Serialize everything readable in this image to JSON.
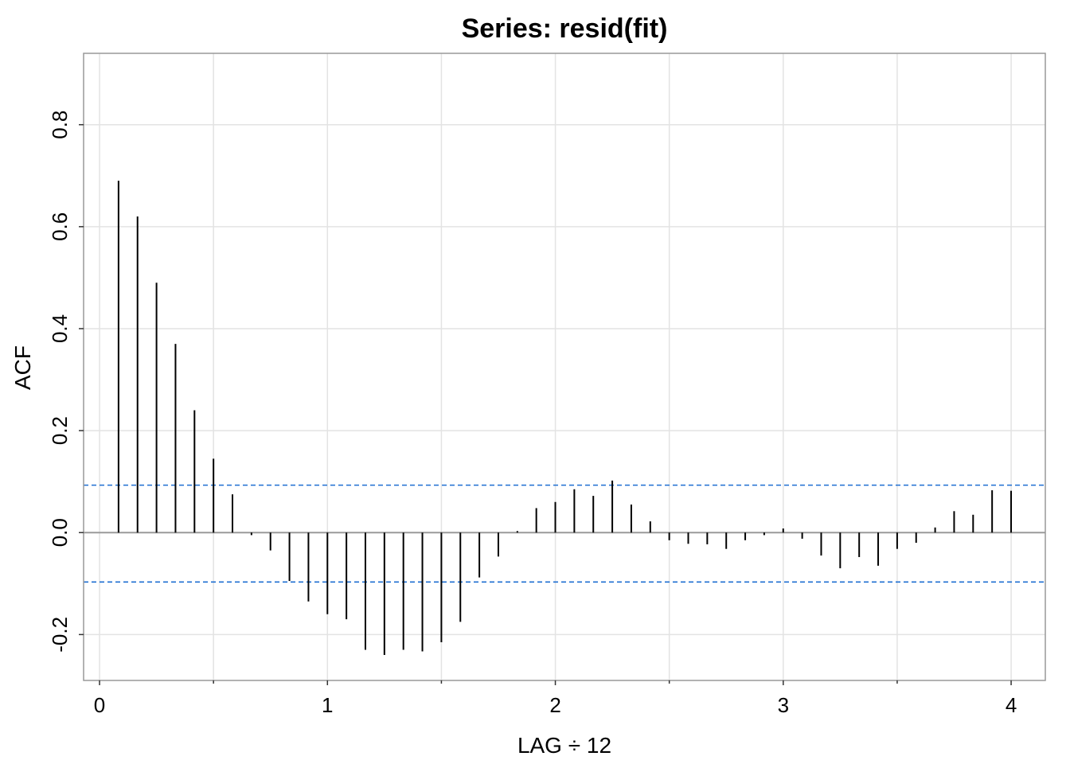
{
  "chart_data": {
    "type": "bar",
    "subtype": "acf-spike-plot",
    "title": "Series:  resid(fit)",
    "xlabel": "LAG ÷ 12",
    "ylabel": "ACF",
    "xlim": [
      -0.07,
      4.15
    ],
    "ylim": [
      -0.29,
      0.94
    ],
    "x_ticks": [
      0,
      1,
      2,
      3,
      4
    ],
    "x_tick_labels": [
      "0",
      "1",
      "2",
      "3",
      "4"
    ],
    "x_minor_ticks": [
      0.5,
      1.5,
      2.5,
      3.5
    ],
    "y_ticks": [
      -0.2,
      0.0,
      0.2,
      0.4,
      0.6,
      0.8
    ],
    "y_tick_labels": [
      "-0.2",
      "0.0",
      "0.2",
      "0.4",
      "0.6",
      "0.8"
    ],
    "x_grid": [
      0,
      0.5,
      1,
      1.5,
      2,
      2.5,
      3,
      3.5,
      4
    ],
    "y_grid": [
      -0.2,
      0.0,
      0.2,
      0.4,
      0.6,
      0.8
    ],
    "grid": true,
    "confidence_bounds": [
      0.093,
      -0.097
    ],
    "zero_line": 0.0,
    "lag_step": 0.08333,
    "acf_values": [
      0.69,
      0.62,
      0.49,
      0.37,
      0.24,
      0.145,
      0.075,
      -0.005,
      -0.035,
      -0.095,
      -0.135,
      -0.16,
      -0.17,
      -0.23,
      -0.24,
      -0.23,
      -0.233,
      -0.215,
      -0.175,
      -0.088,
      -0.047,
      0.003,
      0.048,
      0.06,
      0.085,
      0.072,
      0.102,
      0.055,
      0.022,
      -0.015,
      -0.022,
      -0.023,
      -0.032,
      -0.015,
      -0.005,
      0.008,
      -0.012,
      -0.045,
      -0.07,
      -0.048,
      -0.065,
      -0.032,
      -0.02,
      0.01,
      0.042,
      0.035,
      0.083,
      0.082
    ],
    "colors": {
      "spike": "#000000",
      "bounds": "#1f6fd1",
      "zero_line": "#9a9a9a",
      "grid": "#e3e3e3",
      "frame": "#999999"
    }
  }
}
